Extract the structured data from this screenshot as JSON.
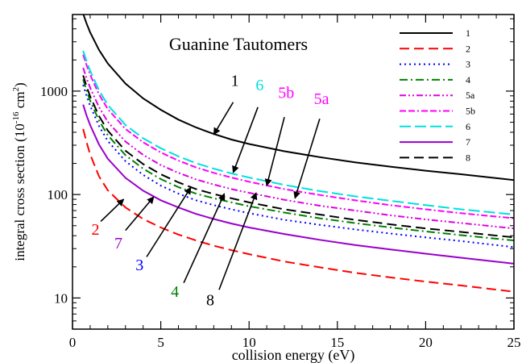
{
  "chart_data": {
    "type": "line",
    "title": "Guanine Tautomers",
    "xlabel": "collision energy (eV)",
    "ylabel": {
      "prefix": "integral cross section (10",
      "exp1": "-16",
      "mid": " cm",
      "exp2": "2",
      "suffix": ")"
    },
    "xlim": [
      0,
      25
    ],
    "ylim": [
      5,
      5500
    ],
    "yscale": "log",
    "grid": false,
    "legend_position": "top-right",
    "x_ticks": [
      0,
      5,
      10,
      15,
      20,
      25
    ],
    "y_ticks": [
      10,
      100,
      1000
    ],
    "series": [
      {
        "name": "1",
        "color": "#000000",
        "dash": "solid",
        "points": [
          [
            0.6,
            5600
          ],
          [
            0.8,
            4500
          ],
          [
            1,
            3700
          ],
          [
            1.5,
            2500
          ],
          [
            2,
            1850
          ],
          [
            3,
            1180
          ],
          [
            4,
            850
          ],
          [
            5,
            660
          ],
          [
            6,
            530
          ],
          [
            7,
            445
          ],
          [
            8,
            385
          ],
          [
            9,
            340
          ],
          [
            10,
            308
          ],
          [
            12,
            262
          ],
          [
            14,
            230
          ],
          [
            16,
            205
          ],
          [
            18,
            186
          ],
          [
            20,
            170
          ],
          [
            22,
            157
          ],
          [
            25,
            138
          ]
        ]
      },
      {
        "name": "2",
        "color": "#ff0000",
        "dash": "dashed",
        "points": [
          [
            0.6,
            430
          ],
          [
            0.8,
            320
          ],
          [
            1,
            245
          ],
          [
            1.5,
            150
          ],
          [
            2,
            110
          ],
          [
            3,
            75
          ],
          [
            4,
            58
          ],
          [
            5,
            48
          ],
          [
            6,
            41
          ],
          [
            7,
            36
          ],
          [
            8,
            32
          ],
          [
            9,
            29
          ],
          [
            10,
            26.5
          ],
          [
            12,
            22.5
          ],
          [
            14,
            19.8
          ],
          [
            16,
            17.5
          ],
          [
            18,
            15.8
          ],
          [
            20,
            14.4
          ],
          [
            22,
            13.2
          ],
          [
            25,
            11.5
          ]
        ]
      },
      {
        "name": "3",
        "color": "#0000ff",
        "dash": "dotted",
        "points": [
          [
            0.6,
            1150
          ],
          [
            0.8,
            900
          ],
          [
            1,
            720
          ],
          [
            1.5,
            460
          ],
          [
            2,
            330
          ],
          [
            3,
            210
          ],
          [
            4,
            155
          ],
          [
            5,
            122
          ],
          [
            6,
            102
          ],
          [
            7,
            88
          ],
          [
            8,
            79
          ],
          [
            9,
            72
          ],
          [
            10,
            66
          ],
          [
            12,
            57
          ],
          [
            14,
            51
          ],
          [
            16,
            46
          ],
          [
            18,
            42
          ],
          [
            20,
            38.5
          ],
          [
            22,
            35.5
          ],
          [
            25,
            31
          ]
        ]
      },
      {
        "name": "4",
        "color": "#008000",
        "dash": "dashdot",
        "points": [
          [
            0.6,
            1300
          ],
          [
            0.8,
            1010
          ],
          [
            1,
            810
          ],
          [
            1.5,
            520
          ],
          [
            2,
            375
          ],
          [
            3,
            240
          ],
          [
            4,
            178
          ],
          [
            5,
            141
          ],
          [
            6,
            118
          ],
          [
            7,
            102
          ],
          [
            8,
            92
          ],
          [
            9,
            84
          ],
          [
            10,
            77
          ],
          [
            12,
            67
          ],
          [
            14,
            59
          ],
          [
            16,
            53
          ],
          [
            18,
            48
          ],
          [
            20,
            44
          ],
          [
            22,
            40.5
          ],
          [
            25,
            36
          ]
        ]
      },
      {
        "name": "5a",
        "color": "#e000e0",
        "dash": "dashdotdot",
        "points": [
          [
            0.6,
            1680
          ],
          [
            0.8,
            1330
          ],
          [
            1,
            1080
          ],
          [
            1.5,
            700
          ],
          [
            2,
            505
          ],
          [
            3,
            325
          ],
          [
            4,
            242
          ],
          [
            5,
            193
          ],
          [
            6,
            162
          ],
          [
            7,
            140
          ],
          [
            8,
            125
          ],
          [
            9,
            113
          ],
          [
            10,
            104
          ],
          [
            12,
            89
          ],
          [
            14,
            78
          ],
          [
            16,
            70
          ],
          [
            18,
            63
          ],
          [
            20,
            57.5
          ],
          [
            22,
            53
          ],
          [
            25,
            47
          ]
        ]
      },
      {
        "name": "5b",
        "color": "#ff00ff",
        "dash": "dashdashdot",
        "points": [
          [
            0.6,
            2250
          ],
          [
            0.8,
            1780
          ],
          [
            1,
            1440
          ],
          [
            1.5,
            930
          ],
          [
            2,
            670
          ],
          [
            3,
            430
          ],
          [
            4,
            320
          ],
          [
            5,
            255
          ],
          [
            6,
            213
          ],
          [
            7,
            183
          ],
          [
            8,
            162
          ],
          [
            9,
            146
          ],
          [
            10,
            133
          ],
          [
            12,
            113
          ],
          [
            14,
            99
          ],
          [
            16,
            88
          ],
          [
            18,
            79
          ],
          [
            20,
            72
          ],
          [
            22,
            66
          ],
          [
            25,
            59
          ]
        ]
      },
      {
        "name": "6",
        "color": "#00e0e0",
        "dash": "longdash",
        "points": [
          [
            0.6,
            2450
          ],
          [
            0.8,
            1940
          ],
          [
            1,
            1570
          ],
          [
            1.5,
            1020
          ],
          [
            2,
            735
          ],
          [
            3,
            470
          ],
          [
            4,
            350
          ],
          [
            5,
            280
          ],
          [
            6,
            234
          ],
          [
            7,
            201
          ],
          [
            8,
            178
          ],
          [
            9,
            160
          ],
          [
            10,
            146
          ],
          [
            12,
            124
          ],
          [
            14,
            108
          ],
          [
            16,
            96
          ],
          [
            18,
            87
          ],
          [
            20,
            79
          ],
          [
            22,
            72
          ],
          [
            25,
            64
          ]
        ]
      },
      {
        "name": "7",
        "color": "#9900cc",
        "dash": "solid",
        "points": [
          [
            0.6,
            740
          ],
          [
            0.8,
            580
          ],
          [
            1,
            470
          ],
          [
            1.5,
            305
          ],
          [
            2,
            222
          ],
          [
            3,
            145
          ],
          [
            4,
            109
          ],
          [
            5,
            88
          ],
          [
            6,
            75
          ],
          [
            7,
            65
          ],
          [
            8,
            58
          ],
          [
            9,
            52.5
          ],
          [
            10,
            48
          ],
          [
            12,
            41.5
          ],
          [
            14,
            36.5
          ],
          [
            16,
            32.5
          ],
          [
            18,
            29.5
          ],
          [
            20,
            26.8
          ],
          [
            22,
            24.5
          ],
          [
            25,
            21.5
          ]
        ]
      },
      {
        "name": "8",
        "color": "#000000",
        "dash": "dashed",
        "points": [
          [
            0.6,
            1420
          ],
          [
            0.8,
            1110
          ],
          [
            1,
            890
          ],
          [
            1.5,
            575
          ],
          [
            2,
            415
          ],
          [
            3,
            265
          ],
          [
            4,
            197
          ],
          [
            5,
            157
          ],
          [
            6,
            131
          ],
          [
            7,
            113
          ],
          [
            8,
            101
          ],
          [
            9,
            92
          ],
          [
            10,
            84
          ],
          [
            12,
            72
          ],
          [
            14,
            64
          ],
          [
            16,
            57
          ],
          [
            18,
            51.5
          ],
          [
            20,
            47
          ],
          [
            22,
            43.5
          ],
          [
            25,
            38.5
          ]
        ]
      }
    ],
    "annotations": [
      {
        "text": "1",
        "color": "#000000",
        "label_at": [
          9.2,
          1120
        ],
        "arrow_from": [
          9.1,
          780
        ],
        "arrow_to": [
          8.0,
          380
        ]
      },
      {
        "text": "6",
        "color": "#00e0e0",
        "label_at": [
          10.6,
          1020
        ],
        "arrow_from": [
          10.5,
          700
        ],
        "arrow_to": [
          9.1,
          163
        ]
      },
      {
        "text": "5b",
        "color": "#ff00ff",
        "label_at": [
          12.1,
          860
        ],
        "arrow_from": [
          12.0,
          560
        ],
        "arrow_to": [
          11.0,
          122
        ]
      },
      {
        "text": "5a",
        "color": "#ff00ff",
        "label_at": [
          14.1,
          750
        ],
        "arrow_from": [
          14.0,
          540
        ],
        "arrow_to": [
          12.6,
          92
        ]
      },
      {
        "text": "2",
        "color": "#ff0000",
        "label_at": [
          1.3,
          41
        ],
        "arrow_from": [
          1.6,
          55
        ],
        "arrow_to": [
          2.9,
          90
        ]
      },
      {
        "text": "7",
        "color": "#9900cc",
        "label_at": [
          2.6,
          30
        ],
        "arrow_from": [
          3.0,
          45
        ],
        "arrow_to": [
          4.6,
          95
        ]
      },
      {
        "text": "3",
        "color": "#0000ff",
        "label_at": [
          3.8,
          18.5
        ],
        "arrow_from": [
          4.2,
          25
        ],
        "arrow_to": [
          6.7,
          117
        ]
      },
      {
        "text": "4",
        "color": "#008000",
        "label_at": [
          5.8,
          10.3
        ],
        "arrow_from": [
          6.3,
          14
        ],
        "arrow_to": [
          8.6,
          102
        ]
      },
      {
        "text": "8",
        "color": "#000000",
        "label_at": [
          7.8,
          8.5
        ],
        "arrow_from": [
          8.3,
          12
        ],
        "arrow_to": [
          10.4,
          104
        ]
      }
    ]
  }
}
